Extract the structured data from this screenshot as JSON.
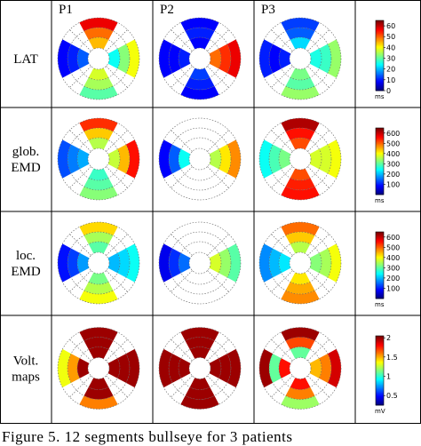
{
  "columns": [
    "P1",
    "P2",
    "P3"
  ],
  "caption": "Figure 5.    12 segments bullseye for 3 patients",
  "chart_data": {
    "type": "heatmap",
    "subtype": "bullseye",
    "segments": 12,
    "rings": [
      "outer",
      "middle",
      "inner"
    ],
    "segments_per_ring": 4,
    "segment_directions": [
      "top",
      "right",
      "bottom",
      "left"
    ],
    "rows": [
      {
        "label_lines": [
          "LAT"
        ],
        "unit": "ms",
        "range": [
          0,
          65
        ],
        "colorbar_ticks": [
          0,
          10,
          20,
          30,
          40,
          50,
          60
        ],
        "values": [
          {
            "patient": "P1",
            "top": [
              58,
              50,
              45
            ],
            "right": [
              40,
              33,
              25
            ],
            "bottom": [
              30,
              35,
              38
            ],
            "left": [
              8,
              10,
              14
            ]
          },
          {
            "patient": "P2",
            "top": [
              8,
              10,
              8
            ],
            "right": [
              58,
              54,
              50
            ],
            "bottom": [
              8,
              10,
              12
            ],
            "left": [
              8,
              8,
              10
            ]
          },
          {
            "patient": "P3",
            "top": [
              12,
              14,
              22
            ],
            "right": [
              34,
              28,
              26
            ],
            "bottom": [
              34,
              30,
              32
            ],
            "left": [
              10,
              8,
              10
            ]
          }
        ]
      },
      {
        "label_lines": [
          "glob.",
          "EMD"
        ],
        "unit": "ms",
        "range": [
          0,
          650
        ],
        "colorbar_ticks": [
          100,
          200,
          300,
          400,
          500,
          600
        ],
        "values": [
          {
            "patient": "P1",
            "top": [
              540,
              440,
              360
            ],
            "right": [
              560,
              450,
              370
            ],
            "bottom": [
              330,
              300,
              280
            ],
            "left": [
              130,
              160,
              190
            ]
          },
          {
            "patient": "P2",
            "top": [
              null,
              null,
              null
            ],
            "right": [
              480,
              420,
              360
            ],
            "bottom": [
              null,
              null,
              null
            ],
            "left": [
              80,
              140,
              250
            ]
          },
          {
            "patient": "P3",
            "top": [
              620,
              560,
              520
            ],
            "right": [
              400,
              380,
              380
            ],
            "bottom": [
              560,
              550,
              520
            ],
            "left": [
              250,
              290,
              320
            ]
          }
        ]
      },
      {
        "label_lines": [
          "loc.",
          "EMD"
        ],
        "unit": "ms",
        "range": [
          0,
          650
        ],
        "colorbar_ticks": [
          100,
          200,
          300,
          400,
          500,
          600
        ],
        "values": [
          {
            "patient": "P1",
            "top": [
              430,
              350,
              300
            ],
            "right": [
              250,
              220,
              200
            ],
            "bottom": [
              400,
              360,
              320
            ],
            "left": [
              90,
              120,
              180
            ]
          },
          {
            "patient": "P2",
            "top": [
              null,
              null,
              null
            ],
            "right": [
              300,
              340,
              380
            ],
            "bottom": [
              null,
              null,
              null
            ],
            "left": [
              70,
              110,
              150
            ]
          },
          {
            "patient": "P3",
            "top": [
              500,
              440,
              360
            ],
            "right": [
              400,
              350,
              330
            ],
            "bottom": [
              480,
              460,
              420
            ],
            "left": [
              170,
              200,
              230
            ]
          }
        ]
      },
      {
        "label_lines": [
          "Volt.",
          "maps"
        ],
        "unit": "mV",
        "range": [
          0.25,
          2.05
        ],
        "colorbar_ticks": [
          0.5,
          1,
          1.5,
          2
        ],
        "values": [
          {
            "patient": "P1",
            "top": [
              2.0,
              2.0,
              2.0
            ],
            "right": [
              2.0,
              2.0,
              2.0
            ],
            "bottom": [
              1.6,
              2.0,
              2.0
            ],
            "left": [
              1.35,
              1.55,
              2.0
            ]
          },
          {
            "patient": "P2",
            "top": [
              2.0,
              2.0,
              2.0
            ],
            "right": [
              2.0,
              2.0,
              2.0
            ],
            "bottom": [
              2.0,
              2.0,
              2.0
            ],
            "left": [
              2.0,
              2.0,
              2.0
            ]
          },
          {
            "patient": "P3",
            "top": [
              2.0,
              1.7,
              1.1
            ],
            "right": [
              1.9,
              1.6,
              1.5
            ],
            "bottom": [
              1.2,
              1.6,
              1.8
            ],
            "left": [
              2.0,
              1.1,
              1.8
            ]
          }
        ]
      }
    ]
  }
}
